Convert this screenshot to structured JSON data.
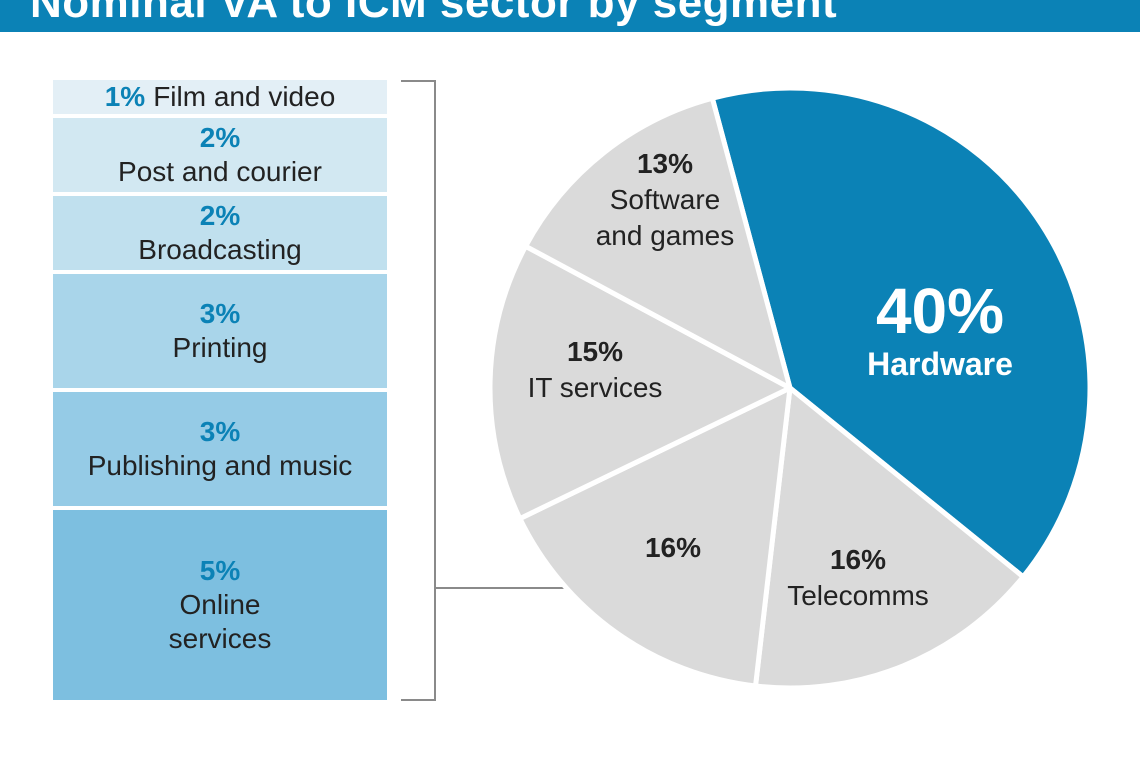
{
  "title": "Nominal VA to ICM sector by segment",
  "chart_data": {
    "type": "pie",
    "title": "Nominal VA to ICM sector by segment",
    "unit": "%",
    "slices": [
      {
        "label": "Hardware",
        "value": 40,
        "color": "#0b82b6"
      },
      {
        "label": "Telecomms",
        "value": 16,
        "color": "#dadada"
      },
      {
        "label": "",
        "value": 16,
        "color": "#dadada",
        "breakdown_ref": true
      },
      {
        "label": "IT services",
        "value": 15,
        "color": "#dadada"
      },
      {
        "label": "Software and games",
        "value": 13,
        "color": "#dadada"
      }
    ],
    "breakdown": {
      "of_slice": 16,
      "segments": [
        {
          "pct": "1%",
          "label": "Film and video",
          "value": 1,
          "color": "#e3eff6"
        },
        {
          "pct": "2%",
          "label": "Post and courier",
          "value": 2,
          "color": "#d2e8f2"
        },
        {
          "pct": "2%",
          "label": "Broadcasting",
          "value": 2,
          "color": "#c0e0ee"
        },
        {
          "pct": "3%",
          "label": "Printing",
          "value": 3,
          "color": "#a9d5ea"
        },
        {
          "pct": "3%",
          "label": "Publishing and music",
          "value": 3,
          "color": "#95cbe6"
        },
        {
          "pct": "5%",
          "label": "Online services",
          "value": 5,
          "color": "#7dbfe0"
        }
      ]
    }
  },
  "pie_labels": {
    "hardware": {
      "pct": "40%",
      "label": "Hardware"
    },
    "telecomms": {
      "pct": "16%",
      "label": "Telecomms"
    },
    "other": {
      "pct": "16%"
    },
    "it": {
      "pct": "15%",
      "label": "IT services"
    },
    "software": {
      "pct": "13%",
      "label_1": "Software",
      "label_2": "and games"
    }
  }
}
